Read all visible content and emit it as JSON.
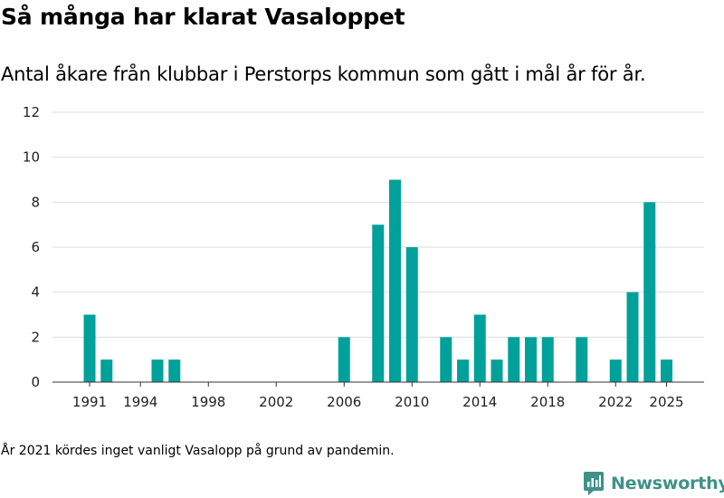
{
  "chart_data": {
    "type": "bar",
    "title": "Så många har klarat Vasaloppet",
    "subtitle": "Antal åkare från klubbar i Perstorps kommun som gått i mål år för år.",
    "x": [
      1991,
      1992,
      1993,
      1994,
      1995,
      1996,
      1997,
      1998,
      1999,
      2000,
      2001,
      2002,
      2003,
      2004,
      2005,
      2006,
      2007,
      2008,
      2009,
      2010,
      2011,
      2012,
      2013,
      2014,
      2015,
      2016,
      2017,
      2018,
      2019,
      2020,
      2021,
      2022,
      2023,
      2024,
      2025
    ],
    "values": [
      3,
      1,
      0,
      0,
      1,
      1,
      0,
      0,
      0,
      0,
      0,
      0,
      0,
      0,
      0,
      2,
      0,
      7,
      9,
      6,
      0,
      2,
      1,
      3,
      1,
      2,
      2,
      2,
      0,
      2,
      0,
      1,
      4,
      8,
      1
    ],
    "x_ticks": [
      "1991",
      "1994",
      "1998",
      "2002",
      "2006",
      "2010",
      "2014",
      "2018",
      "2022",
      "2025"
    ],
    "y_ticks": [
      "0",
      "2",
      "4",
      "6",
      "8",
      "10",
      "12"
    ],
    "ylim": [
      0,
      12
    ],
    "grid": true,
    "bar_color": "#00a19a",
    "xlabel": "",
    "ylabel": ""
  },
  "footnote": "År 2021 kördes inget vanligt Vasalopp på grund av pandemin.",
  "brand": {
    "name": "Newsworthy",
    "color": "#3f918a",
    "icon": "newsworthy-logo-icon"
  }
}
